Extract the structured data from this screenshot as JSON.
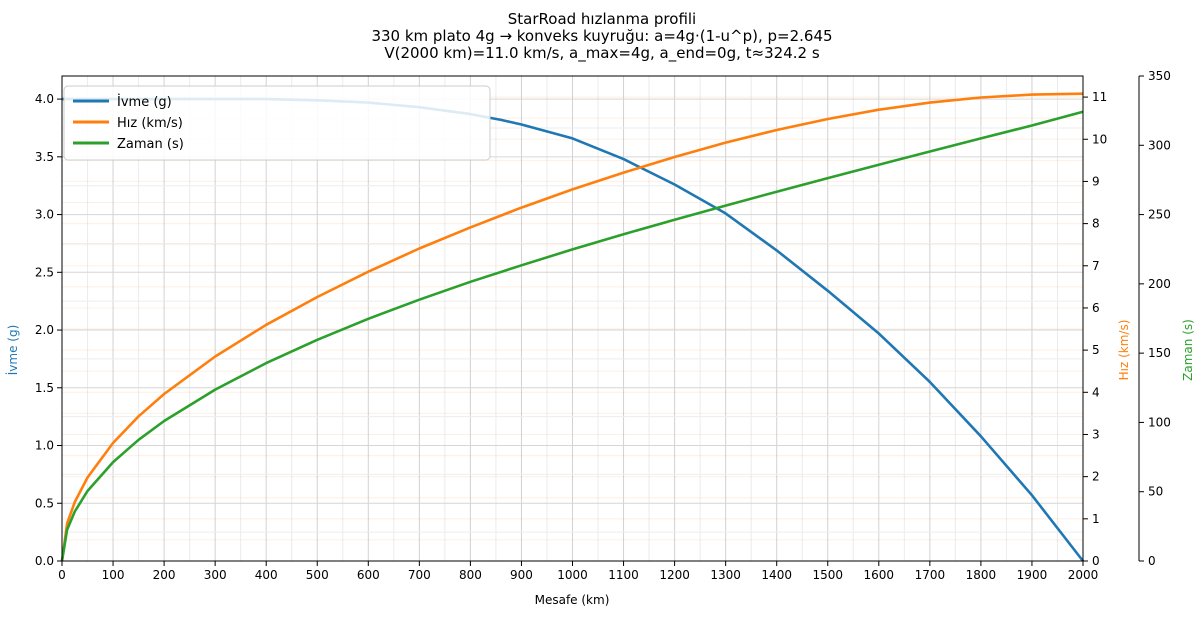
{
  "chart_data": {
    "type": "line",
    "title_lines": [
      "StarRoad hızlanma profili",
      "330 km plato 4g → konveks kuyruğu: a=4g·(1-u^p), p=2.645",
      "V(2000 km)=11.0 km/s, a_max=4g, a_end=0g, t≈324.2 s"
    ],
    "xlabel": "Mesafe (km)",
    "xlim": [
      0,
      2000
    ],
    "xticks": [
      0,
      100,
      200,
      300,
      400,
      500,
      600,
      700,
      800,
      900,
      1000,
      1100,
      1200,
      1300,
      1400,
      1500,
      1600,
      1700,
      1800,
      1900,
      2000
    ],
    "grid": true,
    "legend_position": "top-left",
    "axes": {
      "left": {
        "label": "İvme (g)",
        "color": "#1f77b4",
        "lim": [
          0,
          4.2
        ],
        "ticks": [
          "0.0",
          "0.5",
          "1.0",
          "1.5",
          "2.0",
          "2.5",
          "3.0",
          "3.5",
          "4.0"
        ]
      },
      "right": {
        "label": "Hız (km/s)",
        "color": "#ff7f0e",
        "lim": [
          0,
          11.5
        ],
        "ticks": [
          "0",
          "1",
          "2",
          "3",
          "4",
          "5",
          "6",
          "7",
          "8",
          "9",
          "10",
          "11"
        ]
      },
      "right2": {
        "label": "Zaman (s)",
        "color": "#2ca02c",
        "lim": [
          0,
          350
        ],
        "ticks": [
          "0",
          "50",
          "100",
          "150",
          "200",
          "250",
          "300",
          "350"
        ]
      }
    },
    "series": [
      {
        "name": "İvme (g)",
        "axis": "left",
        "color": "#1f77b4",
        "x": [
          0,
          330,
          400,
          500,
          600,
          700,
          800,
          860,
          900,
          1000,
          1100,
          1200,
          1300,
          1400,
          1500,
          1600,
          1700,
          1800,
          1900,
          2000
        ],
        "y": [
          4.0,
          4.0,
          4.0,
          3.99,
          3.97,
          3.93,
          3.87,
          3.82,
          3.78,
          3.66,
          3.48,
          3.26,
          3.01,
          2.69,
          2.34,
          1.97,
          1.55,
          1.08,
          0.57,
          0.0
        ]
      },
      {
        "name": "Hız (km/s)",
        "axis": "right",
        "color": "#ff7f0e",
        "x": [
          0,
          10,
          25,
          50,
          100,
          150,
          200,
          300,
          400,
          500,
          600,
          700,
          800,
          900,
          1000,
          1100,
          1200,
          1300,
          1400,
          1500,
          1600,
          1700,
          1800,
          1900,
          2000
        ],
        "y": [
          0,
          0.89,
          1.4,
          1.98,
          2.8,
          3.43,
          3.96,
          4.85,
          5.6,
          6.26,
          6.86,
          7.41,
          7.91,
          8.38,
          8.81,
          9.21,
          9.58,
          9.92,
          10.22,
          10.48,
          10.7,
          10.87,
          10.99,
          11.06,
          11.08
        ]
      },
      {
        "name": "Zaman (s)",
        "axis": "right2",
        "color": "#2ca02c",
        "x": [
          0,
          10,
          25,
          50,
          100,
          150,
          200,
          300,
          400,
          500,
          600,
          700,
          800,
          900,
          1000,
          1100,
          1200,
          1300,
          1400,
          1500,
          1600,
          1700,
          1800,
          1900,
          2000
        ],
        "y": [
          0,
          22.6,
          35.7,
          50.5,
          71.4,
          87.5,
          101.0,
          123.7,
          142.8,
          159.6,
          174.8,
          188.6,
          201.5,
          213.4,
          224.9,
          235.8,
          246.2,
          256.5,
          266.5,
          276.3,
          286.0,
          295.5,
          305.0,
          314.3,
          324.2
        ]
      }
    ]
  }
}
